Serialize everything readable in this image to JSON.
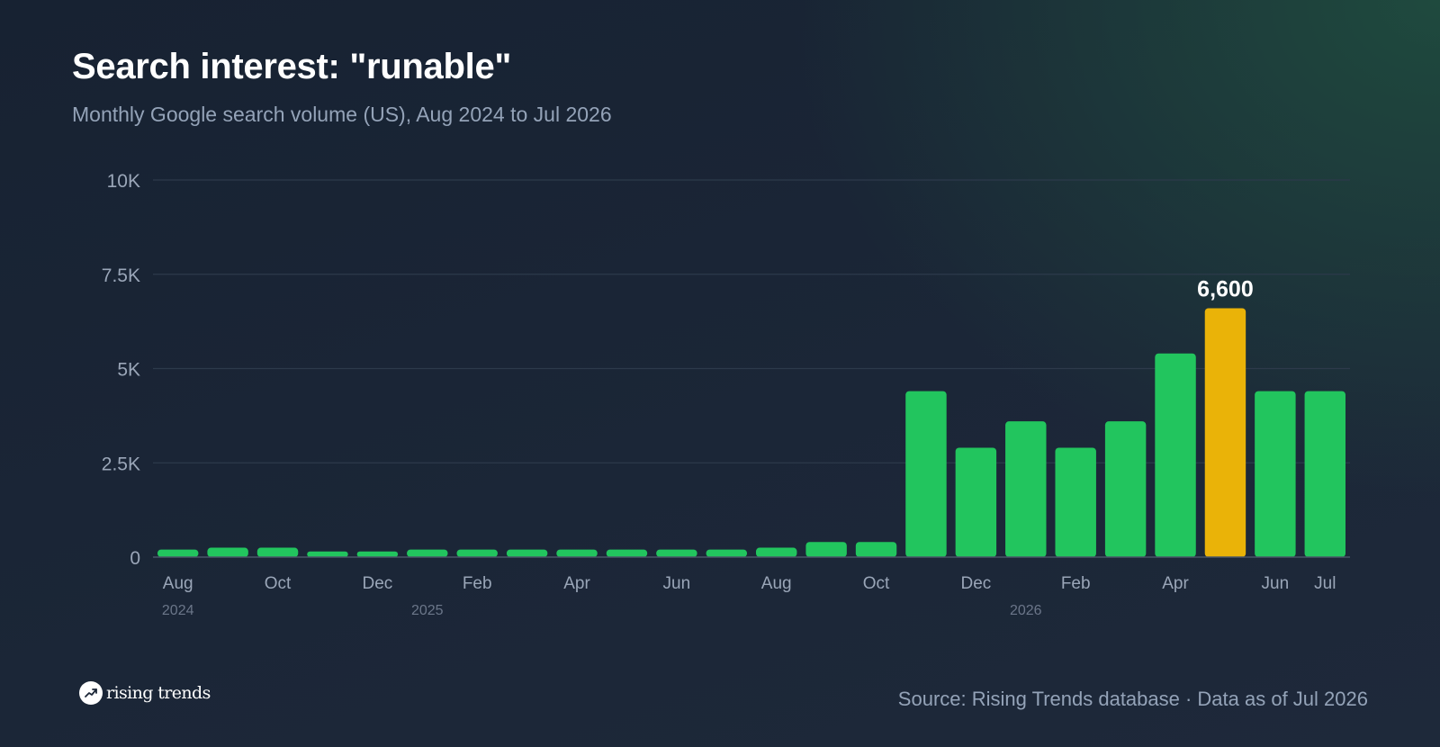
{
  "header": {
    "title": "Search interest: \"runable\"",
    "subtitle": "Monthly Google search volume (US), Aug 2024 to Jul 2026"
  },
  "chart_data": {
    "type": "bar",
    "categories": [
      "Aug 2024",
      "Sep 2024",
      "Oct 2024",
      "Nov 2024",
      "Dec 2024",
      "Jan 2025",
      "Feb 2025",
      "Mar 2025",
      "Apr 2025",
      "May 2025",
      "Jun 2025",
      "Jul 2025",
      "Aug 2025",
      "Sep 2025",
      "Oct 2025",
      "Nov 2025",
      "Dec 2025",
      "Jan 2026",
      "Feb 2026",
      "Mar 2026",
      "Apr 2026",
      "May 2026",
      "Jun 2026",
      "Jul 2026"
    ],
    "values": [
      200,
      250,
      250,
      150,
      150,
      200,
      200,
      200,
      200,
      200,
      200,
      200,
      250,
      400,
      400,
      4400,
      2900,
      3600,
      2900,
      3600,
      5400,
      6600,
      4400,
      4400
    ],
    "ylim": [
      0,
      10000
    ],
    "y_ticks": [
      {
        "value": 0,
        "label": "0"
      },
      {
        "value": 2500,
        "label": "2.5K"
      },
      {
        "value": 5000,
        "label": "5K"
      },
      {
        "value": 7500,
        "label": "7.5K"
      },
      {
        "value": 10000,
        "label": "10K"
      }
    ],
    "x_tick_labels": [
      {
        "index": 0,
        "label": "Aug"
      },
      {
        "index": 2,
        "label": "Oct"
      },
      {
        "index": 4,
        "label": "Dec"
      },
      {
        "index": 6,
        "label": "Feb"
      },
      {
        "index": 8,
        "label": "Apr"
      },
      {
        "index": 10,
        "label": "Jun"
      },
      {
        "index": 12,
        "label": "Aug"
      },
      {
        "index": 14,
        "label": "Oct"
      },
      {
        "index": 16,
        "label": "Dec"
      },
      {
        "index": 18,
        "label": "Feb"
      },
      {
        "index": 20,
        "label": "Apr"
      },
      {
        "index": 22,
        "label": "Jun"
      },
      {
        "index": 23,
        "label": "Jul"
      }
    ],
    "year_labels": [
      {
        "index": 0,
        "label": "2024"
      },
      {
        "index": 5,
        "label": "2025"
      },
      {
        "index": 17,
        "label": "2026"
      }
    ],
    "highlight": {
      "index": 21,
      "label": "6,600"
    },
    "grid": true,
    "legend": "none",
    "colors": {
      "bar": "#22c55e",
      "highlight": "#eab308",
      "grid": "#2d3a4b",
      "baseline": "#4a5668"
    }
  },
  "footer": {
    "brand": "rising trends",
    "brand_icon": "trending-up-icon",
    "source": "Source: Rising Trends database · Data as of Jul 2026"
  }
}
